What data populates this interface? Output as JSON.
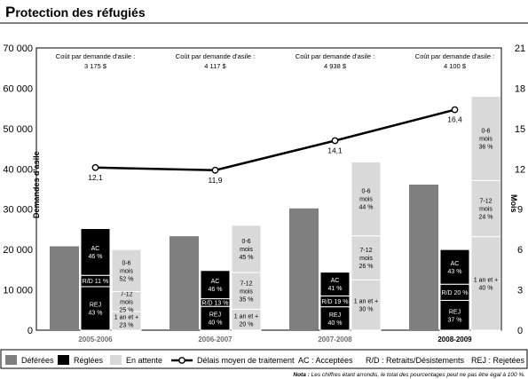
{
  "chart_data": {
    "type": "bar",
    "title_first": "P",
    "title_rest": "rotection des réfugiés",
    "ylabel_left": "Demandes d'asile",
    "ylabel_right": "Mois",
    "ylim_left": [
      0,
      70000
    ],
    "ylim_right": [
      0,
      21
    ],
    "left_ticks": [
      "0",
      "10 000",
      "20 000",
      "30 000",
      "40 000",
      "50 000",
      "60 000",
      "70 000"
    ],
    "right_ticks": [
      "0",
      "3",
      "6",
      "9",
      "12",
      "15",
      "18",
      "21"
    ],
    "cost_label": "Coût par demande d'asile :",
    "categories": [
      "2005-2006",
      "2006-2007",
      "2007-2008",
      "2008-2009"
    ],
    "series": [
      {
        "name": "Déférées",
        "values": [
          20800,
          23300,
          30200,
          36100
        ]
      },
      {
        "name": "Réglées",
        "values": [
          25200,
          14800,
          14400,
          20000
        ]
      },
      {
        "name": "En attente",
        "values": [
          20000,
          26000,
          41700,
          58000
        ]
      },
      {
        "name": "Délais moyen de traitement",
        "values": [
          12.1,
          11.9,
          14.1,
          16.4
        ]
      }
    ],
    "groups": [
      {
        "cost": "3 175 $",
        "delay_label": "12,1",
        "reglees_segments": [
          {
            "lines": [
              "REJ",
              "43 %"
            ],
            "start": 0,
            "end": 10800
          },
          {
            "lines": [
              "R/D 11 %"
            ],
            "start": 10800,
            "end": 13600
          },
          {
            "lines": [
              "AC",
              "46 %"
            ],
            "start": 13600,
            "end": 25200
          }
        ],
        "attente_segments": [
          {
            "lines": [
              "1 an et +",
              "23 %"
            ],
            "start": 0,
            "end": 4600
          },
          {
            "lines": [
              "7-12",
              "mois",
              "25 %"
            ],
            "start": 4600,
            "end": 9600
          },
          {
            "lines": [
              "0-6",
              "mois",
              "52 %"
            ],
            "start": 9600,
            "end": 20000
          }
        ]
      },
      {
        "cost": "4 117 $",
        "delay_label": "11,9",
        "reglees_segments": [
          {
            "lines": [
              "REJ",
              "40 %"
            ],
            "start": 0,
            "end": 5900
          },
          {
            "lines": [
              "R/D 13 %"
            ],
            "start": 5900,
            "end": 7800
          },
          {
            "lines": [
              "AC",
              "46 %"
            ],
            "start": 7800,
            "end": 14800
          }
        ],
        "attente_segments": [
          {
            "lines": [
              "1 an et +",
              "20 %"
            ],
            "start": 0,
            "end": 5200
          },
          {
            "lines": [
              "7-12",
              "mois",
              "35 %"
            ],
            "start": 5200,
            "end": 14300
          },
          {
            "lines": [
              "0-6",
              "mois",
              "45 %"
            ],
            "start": 14300,
            "end": 26000
          }
        ]
      },
      {
        "cost": "4 938 $",
        "delay_label": "14,1",
        "reglees_segments": [
          {
            "lines": [
              "REJ",
              "40 %"
            ],
            "start": 0,
            "end": 5800
          },
          {
            "lines": [
              "R/D 19 %"
            ],
            "start": 5800,
            "end": 8500
          },
          {
            "lines": [
              "AC",
              "41 %"
            ],
            "start": 8500,
            "end": 14400
          }
        ],
        "attente_segments": [
          {
            "lines": [
              "1 an et +",
              "30 %"
            ],
            "start": 0,
            "end": 12500
          },
          {
            "lines": [
              "7-12",
              "mois",
              "26 %"
            ],
            "start": 12500,
            "end": 23400
          },
          {
            "lines": [
              "0-6",
              "mois",
              "44 %"
            ],
            "start": 23400,
            "end": 41700
          }
        ]
      },
      {
        "cost": "4 100 $",
        "delay_label": "16,4",
        "reglees_segments": [
          {
            "lines": [
              "REJ",
              "37 %"
            ],
            "start": 0,
            "end": 7400
          },
          {
            "lines": [
              "R/D 20 %"
            ],
            "start": 7400,
            "end": 11400
          },
          {
            "lines": [
              "AC",
              "43 %"
            ],
            "start": 11400,
            "end": 20000
          }
        ],
        "attente_segments": [
          {
            "lines": [
              "1 an et +",
              "40 %"
            ],
            "start": 0,
            "end": 23200
          },
          {
            "lines": [
              "7-12",
              "mois",
              "24 %"
            ],
            "start": 23200,
            "end": 37100
          },
          {
            "lines": [
              "0-6",
              "mois",
              "36 %"
            ],
            "start": 37100,
            "end": 58000
          }
        ]
      }
    ],
    "legend": {
      "deferees": "Déférées",
      "reglees": "Réglées",
      "attente": "En attente",
      "delai": "Délais moyen de traitement",
      "ac": "AC : Acceptées",
      "rd": "R/D : Retraits/Désistements",
      "rej": "REJ : Rejetées"
    },
    "note_label": "Nota :",
    "note_text": "Les chiffres étant arrondis, le total des pourcentages peut ne pas être égal à 100 %.",
    "colors": {
      "deferees": "#7f7f7f",
      "reglees": "#000000",
      "attente": "#d9d9d9",
      "line": "#000000"
    }
  }
}
